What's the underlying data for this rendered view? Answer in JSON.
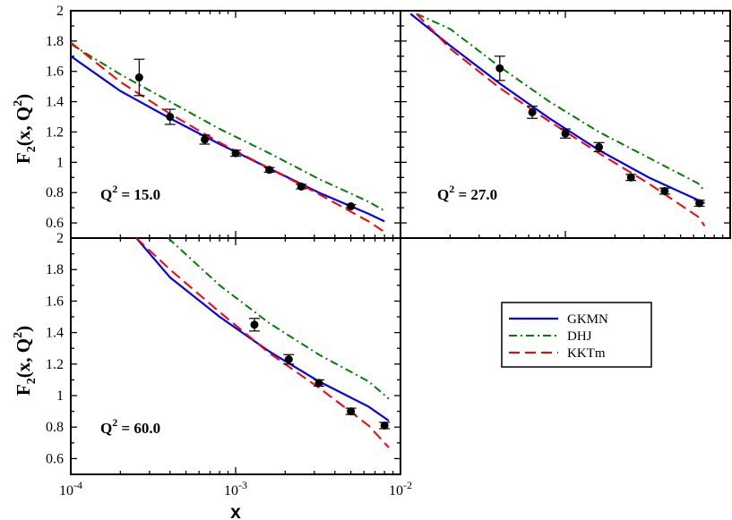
{
  "chart_data": [
    {
      "type": "scatter",
      "id": "p1",
      "title": "",
      "annotation": {
        "main": "Q",
        "sup": "2",
        "rest": " = 15.0"
      },
      "ylabel": {
        "main": "F",
        "sub": "2",
        "mid": "(x, Q",
        "sup": "2",
        "end": ")"
      },
      "xlabel": "",
      "xscale": "log",
      "xlim": [
        0.0001,
        0.01
      ],
      "ylim": [
        0.5,
        2.0
      ],
      "yticks": [
        0.6,
        0.8,
        1.0,
        1.2,
        1.4,
        1.6,
        1.8,
        2.0
      ],
      "yticklabels": [
        "0.6",
        "0.8",
        "1",
        "1.2",
        "1.4",
        "1.6",
        "1.8",
        "2"
      ],
      "show_xticklabels": false,
      "show_yticklabels": true,
      "points": [
        {
          "x": 0.00026,
          "y": 1.56,
          "err": 0.12
        },
        {
          "x": 0.0004,
          "y": 1.3,
          "err": 0.05
        },
        {
          "x": 0.00065,
          "y": 1.15,
          "err": 0.03
        },
        {
          "x": 0.001,
          "y": 1.06,
          "err": 0.02
        },
        {
          "x": 0.0016,
          "y": 0.95,
          "err": 0.015
        },
        {
          "x": 0.0025,
          "y": 0.84,
          "err": 0.015
        },
        {
          "x": 0.005,
          "y": 0.71,
          "err": 0.01
        }
      ],
      "series": [
        {
          "name": "GKMN",
          "style": "solid",
          "color": "#0000ff",
          "x": [
            0.0001,
            0.0002,
            0.0004,
            0.0008,
            0.0016,
            0.0032,
            0.0064,
            0.008
          ],
          "y": [
            1.7,
            1.47,
            1.29,
            1.12,
            0.96,
            0.8,
            0.66,
            0.61
          ]
        },
        {
          "name": "DHJ",
          "style": "dashdot",
          "color": "#008000",
          "x": [
            0.0001,
            0.0002,
            0.0004,
            0.0008,
            0.0016,
            0.0032,
            0.0064,
            0.008
          ],
          "y": [
            1.78,
            1.58,
            1.4,
            1.22,
            1.06,
            0.89,
            0.74,
            0.68
          ]
        },
        {
          "name": "KKTm",
          "style": "dashed",
          "color": "#ff0000",
          "x": [
            0.0001,
            0.0002,
            0.0004,
            0.0008,
            0.0016,
            0.0032,
            0.0064,
            0.008
          ],
          "y": [
            1.79,
            1.53,
            1.32,
            1.13,
            0.96,
            0.79,
            0.61,
            0.54
          ]
        }
      ]
    },
    {
      "type": "scatter",
      "id": "p2",
      "title": "",
      "annotation": {
        "main": "Q",
        "sup": "2",
        "rest": " = 27.0"
      },
      "ylabel": null,
      "xlabel": "",
      "xscale": "log",
      "xlim": [
        0.0001,
        0.01
      ],
      "ylim": [
        0.5,
        2.0
      ],
      "yticks": [
        0.6,
        0.8,
        1.0,
        1.2,
        1.4,
        1.6,
        1.8,
        2.0
      ],
      "yticklabels": [],
      "show_xticklabels": false,
      "show_yticklabels": false,
      "points": [
        {
          "x": 0.0004,
          "y": 1.62,
          "err": 0.08
        },
        {
          "x": 0.00063,
          "y": 1.33,
          "err": 0.04
        },
        {
          "x": 0.001,
          "y": 1.19,
          "err": 0.03
        },
        {
          "x": 0.0016,
          "y": 1.1,
          "err": 0.03
        },
        {
          "x": 0.0025,
          "y": 0.9,
          "err": 0.02
        },
        {
          "x": 0.004,
          "y": 0.81,
          "err": 0.02
        },
        {
          "x": 0.0065,
          "y": 0.73,
          "err": 0.02
        }
      ],
      "series": [
        {
          "name": "GKMN",
          "style": "solid",
          "color": "#0000ff",
          "x": [
            0.000115,
            0.0002,
            0.0004,
            0.0008,
            0.0016,
            0.0032,
            0.0064,
            0.007
          ],
          "y": [
            1.98,
            1.77,
            1.52,
            1.29,
            1.08,
            0.9,
            0.75,
            0.73
          ]
        },
        {
          "name": "DHJ",
          "style": "dashdot",
          "color": "#008000",
          "x": [
            0.000125,
            0.0002,
            0.0004,
            0.0008,
            0.0016,
            0.0032,
            0.0064,
            0.007
          ],
          "y": [
            1.98,
            1.88,
            1.63,
            1.4,
            1.2,
            1.03,
            0.86,
            0.81
          ]
        },
        {
          "name": "KKTm",
          "style": "dashed",
          "color": "#ff0000",
          "x": [
            0.000125,
            0.0002,
            0.0004,
            0.0008,
            0.0016,
            0.0032,
            0.0064,
            0.007
          ],
          "y": [
            1.98,
            1.75,
            1.49,
            1.27,
            1.06,
            0.86,
            0.64,
            0.58
          ]
        }
      ]
    },
    {
      "type": "scatter",
      "id": "p3",
      "title": "",
      "annotation": {
        "main": "Q",
        "sup": "2",
        "rest": " = 60.0"
      },
      "ylabel": {
        "main": "F",
        "sub": "2",
        "mid": "(x, Q",
        "sup": "2",
        "end": ")"
      },
      "xlabel": "x",
      "xscale": "log",
      "xlim": [
        0.0001,
        0.01
      ],
      "ylim": [
        0.5,
        2.0
      ],
      "yticks": [
        0.6,
        0.8,
        1.0,
        1.2,
        1.4,
        1.6,
        1.8,
        2.0
      ],
      "yticklabels": [
        "0.6",
        "0.8",
        "1",
        "1.2",
        "1.4",
        "1.6",
        "1.8",
        "2"
      ],
      "xticks": [
        0.0001,
        0.001,
        0.01
      ],
      "xticklabels": [
        {
          "base": "10",
          "exp": "-4"
        },
        {
          "base": "10",
          "exp": "-3"
        },
        {
          "base": "10",
          "exp": "-2"
        }
      ],
      "show_xticklabels": true,
      "show_yticklabels": true,
      "points": [
        {
          "x": 0.0013,
          "y": 1.45,
          "err": 0.04
        },
        {
          "x": 0.0021,
          "y": 1.23,
          "err": 0.03
        },
        {
          "x": 0.0032,
          "y": 1.08,
          "err": 0.02
        },
        {
          "x": 0.005,
          "y": 0.9,
          "err": 0.02
        },
        {
          "x": 0.008,
          "y": 0.81,
          "err": 0.02
        }
      ],
      "series": [
        {
          "name": "GKMN",
          "style": "solid",
          "color": "#0000ff",
          "x": [
            0.00025,
            0.0004,
            0.0008,
            0.0016,
            0.0032,
            0.0064,
            0.0085
          ],
          "y": [
            2.0,
            1.75,
            1.5,
            1.28,
            1.09,
            0.93,
            0.84
          ]
        },
        {
          "name": "DHJ",
          "style": "dashdot",
          "color": "#008000",
          "x": [
            0.00039,
            0.0008,
            0.0016,
            0.0032,
            0.0064,
            0.0085
          ],
          "y": [
            2.0,
            1.7,
            1.46,
            1.26,
            1.09,
            0.98
          ]
        },
        {
          "name": "KKTm",
          "style": "dashed",
          "color": "#ff0000",
          "x": [
            0.00025,
            0.0004,
            0.0008,
            0.0016,
            0.0032,
            0.0064,
            0.0085
          ],
          "y": [
            2.0,
            1.8,
            1.53,
            1.27,
            1.05,
            0.81,
            0.67
          ]
        }
      ]
    }
  ],
  "legend": {
    "placement": "right-lower",
    "entries": [
      {
        "label": "GKMN",
        "style": "solid",
        "color": "#0000ff"
      },
      {
        "label": "DHJ",
        "style": "dashdot",
        "color": "#008000"
      },
      {
        "label": "KKTm",
        "style": "dashed",
        "color": "#ff0000"
      }
    ]
  }
}
